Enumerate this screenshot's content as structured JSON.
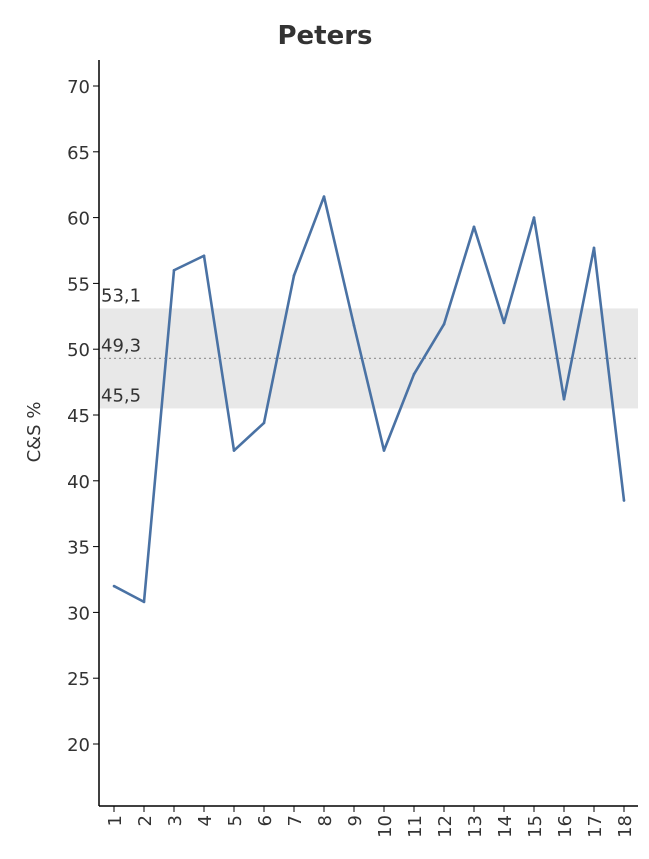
{
  "chart_data": {
    "type": "line",
    "title": "Peters",
    "xlabel": "",
    "ylabel": "C&S %",
    "categories": [
      "1",
      "2",
      "3",
      "4",
      "5",
      "6",
      "7",
      "8",
      "9",
      "10",
      "11",
      "12",
      "13",
      "14",
      "15",
      "16",
      "17",
      "18"
    ],
    "values": [
      32.0,
      30.8,
      56.0,
      57.1,
      42.3,
      44.4,
      55.6,
      61.6,
      51.8,
      42.3,
      48.1,
      51.9,
      59.3,
      52.0,
      60.0,
      46.2,
      57.7,
      38.5
    ],
    "ylim": [
      15,
      72
    ],
    "yticks": [
      20,
      25,
      30,
      35,
      40,
      45,
      50,
      55,
      60,
      65,
      70
    ],
    "band": {
      "lower": 45.5,
      "mean": 49.3,
      "upper": 53.1,
      "lower_label": "45,5",
      "mean_label": "49,3",
      "upper_label": "53,1"
    },
    "grid": false,
    "colors": {
      "line": "#4a72a4",
      "band": "#e8e8e8",
      "mean_line": "#999999",
      "axis": "#000000",
      "text": "#333333"
    }
  }
}
